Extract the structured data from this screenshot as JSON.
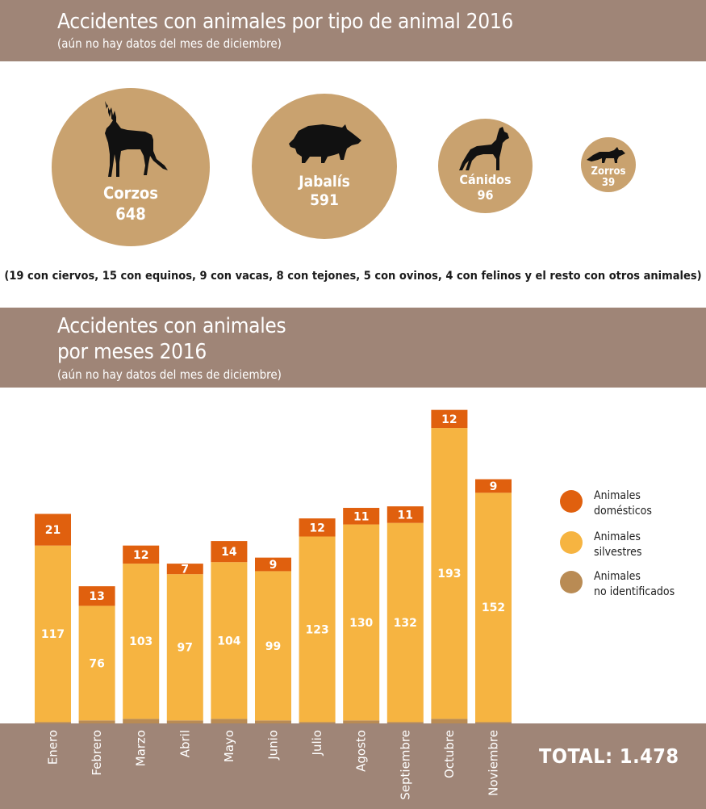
{
  "header1": {
    "title": "Accidentes con animales por tipo de animal 2016",
    "subtitle": "(aún no hay datos del mes de diciembre)"
  },
  "animals": [
    {
      "name": "Corzos",
      "count": "648",
      "icon": "deer-icon"
    },
    {
      "name": "Jabalís",
      "count": "591",
      "icon": "boar-icon"
    },
    {
      "name": "Cánidos",
      "count": "96",
      "icon": "dog-icon"
    },
    {
      "name": "Zorros",
      "count": "39",
      "icon": "fox-icon"
    }
  ],
  "note": "(19 con ciervos, 15 con equinos, 9 con vacas, 8 con tejones, 5 con ovinos, 4 con felinos y el resto con otros animales)",
  "header2": {
    "title_line1": "Accidentes con animales",
    "title_line2": "por meses 2016",
    "subtitle": "(aún no hay datos del mes de diciembre)"
  },
  "legend": [
    {
      "label": "Animales\ndomésticos",
      "color": "#e0600e"
    },
    {
      "label": "Animales\nsilvestres",
      "color": "#f6b441"
    },
    {
      "label": "Animales\nno identificados",
      "color": "#b98b54"
    }
  ],
  "total": "TOTAL: 1.478",
  "colors": {
    "band": "#9f8577",
    "circle": "#c9a26f",
    "domestic": "#e0600e",
    "wild": "#f6b441",
    "unidentified": "#b98b54"
  },
  "chart_data": {
    "type": "bar",
    "stacked": true,
    "categories": [
      "Enero",
      "Febrero",
      "Marzo",
      "Abril",
      "Mayo",
      "Junio",
      "Julio",
      "Agosto",
      "Septiembre",
      "Octubre",
      "Noviembre"
    ],
    "series": [
      {
        "name": "Animales no identificados",
        "values": [
          1,
          2,
          3,
          2,
          3,
          2,
          1,
          2,
          1,
          3,
          1
        ],
        "color": "#b98b54"
      },
      {
        "name": "Animales silvestres",
        "values": [
          117,
          76,
          103,
          97,
          104,
          99,
          123,
          130,
          132,
          193,
          152
        ],
        "color": "#f6b441"
      },
      {
        "name": "Animales domésticos",
        "values": [
          21,
          13,
          12,
          7,
          14,
          9,
          12,
          11,
          11,
          12,
          9
        ],
        "color": "#e0600e"
      }
    ],
    "ylim": [
      0,
      210
    ],
    "grid": false,
    "legend_position": "right"
  }
}
